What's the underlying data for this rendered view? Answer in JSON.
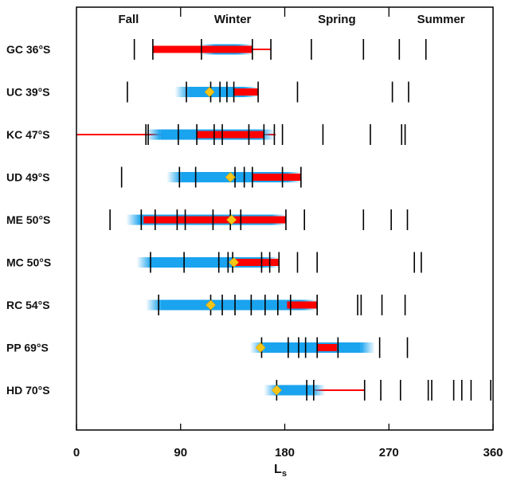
{
  "chart_data": {
    "type": "timeline",
    "xlabel": "L",
    "xlabel_sub": "s",
    "xlim": [
      0,
      360
    ],
    "xticks": [
      0,
      90,
      180,
      270,
      360
    ],
    "seasons": [
      "Fall",
      "Winter",
      "Spring",
      "Summer"
    ],
    "season_boundaries": [
      90,
      180,
      270
    ],
    "colors": {
      "blue": "#1aa3ee",
      "red": "#ff0000",
      "diamond": "#f5c518",
      "tick": "#000000"
    },
    "sites": [
      {
        "label": "GC 36°S",
        "line": [
          66,
          168
        ],
        "blue": [
          107,
          152
        ],
        "red": [
          66,
          152
        ],
        "diamond": null,
        "ticks": [
          50,
          66,
          108,
          152,
          168,
          203,
          248,
          279,
          302
        ]
      },
      {
        "label": "UC 39°S",
        "line": null,
        "blue": [
          85,
          157
        ],
        "red": [
          136,
          157
        ],
        "diamond": 115,
        "ticks": [
          44,
          95,
          116,
          124,
          130,
          136,
          157,
          191,
          273,
          287
        ]
      },
      {
        "label": "KC 47°S",
        "line": [
          0,
          172
        ],
        "blue": [
          60,
          171
        ],
        "red": [
          104,
          162
        ],
        "diamond": null,
        "ticks": [
          60,
          62,
          88,
          104,
          119,
          126,
          149,
          162,
          171,
          178,
          213,
          254,
          281,
          284
        ]
      },
      {
        "label": "UD 49°S",
        "line": null,
        "blue": [
          78,
          194
        ],
        "red": [
          152,
          194
        ],
        "diamond": 133,
        "ticks": [
          39,
          89,
          103,
          137,
          145,
          152,
          178,
          194
        ]
      },
      {
        "label": "ME 50°S",
        "line": null,
        "blue": [
          43,
          181
        ],
        "red": [
          58,
          181
        ],
        "diamond": 134,
        "ticks": [
          29,
          56,
          68,
          87,
          94,
          118,
          133,
          142,
          181,
          197,
          248,
          272,
          286
        ]
      },
      {
        "label": "MC 50°S",
        "line": null,
        "blue": [
          52,
          175
        ],
        "red": [
          136,
          175
        ],
        "diamond": 136,
        "ticks": [
          64,
          93,
          123,
          131,
          135,
          160,
          167,
          175,
          191,
          208,
          292,
          298
        ]
      },
      {
        "label": "RC 54°S",
        "line": null,
        "blue": [
          60,
          208
        ],
        "red": [
          182,
          208
        ],
        "diamond": 116,
        "ticks": [
          71,
          116,
          126,
          137,
          151,
          163,
          174,
          185,
          208,
          243,
          246,
          264,
          284
        ]
      },
      {
        "label": "PP 69°S",
        "line": null,
        "blue": [
          150,
          258
        ],
        "red": [
          208,
          225
        ],
        "diamond": 159,
        "ticks": [
          160,
          183,
          192,
          198,
          208,
          226,
          262,
          286
        ]
      },
      {
        "label": "HD 70°S",
        "line": [
          205,
          249
        ],
        "blue": [
          162,
          215
        ],
        "red": null,
        "diamond": 173,
        "ticks": [
          173,
          199,
          205,
          249,
          263,
          280,
          304,
          307,
          326,
          333,
          341,
          358
        ]
      }
    ]
  }
}
